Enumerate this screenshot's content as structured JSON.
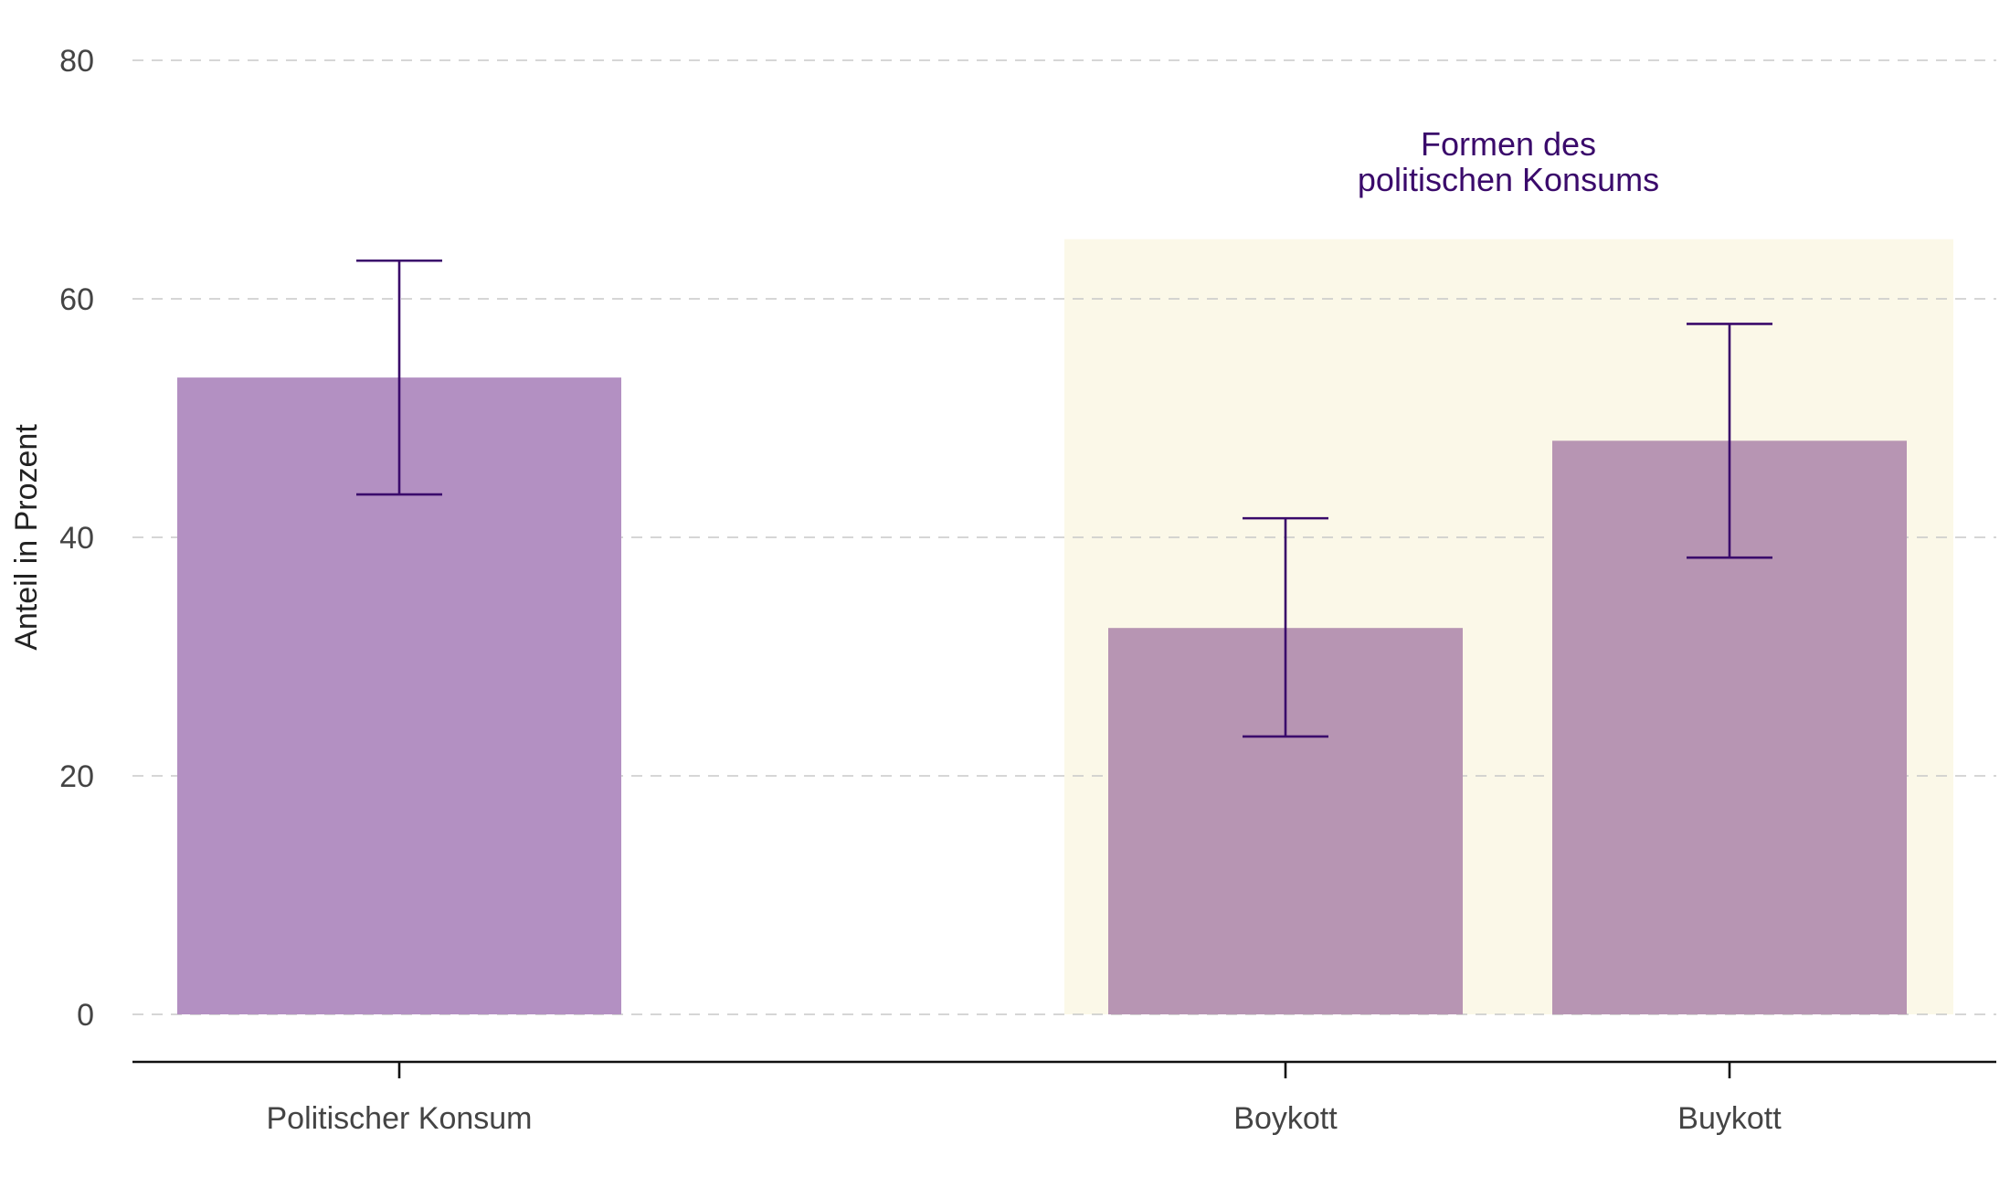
{
  "chart_data": {
    "type": "bar",
    "ylabel": "Anteil in Prozent",
    "xlabel": "",
    "ylim": [
      0,
      80
    ],
    "yticks": [
      0,
      20,
      40,
      60,
      80
    ],
    "grid": "horizontal-dashed",
    "categories": [
      "Politischer Konsum",
      "Boykott",
      "Buykott"
    ],
    "values": [
      53.4,
      32.4,
      48.1
    ],
    "error_low": [
      43.6,
      23.3,
      38.3
    ],
    "error_high": [
      63.2,
      41.6,
      57.9
    ],
    "group_annotation": {
      "lines": [
        "Formen des",
        "politischen Konsums"
      ],
      "categories": [
        "Boykott",
        "Buykott"
      ],
      "ymax": 65
    }
  },
  "colors": {
    "bar_primary": "#b390c2",
    "bar_secondary": "#b795b3",
    "error_bar": "#3a0a6b",
    "highlight_background": "#fbf8e8",
    "grid": "#c8c8c8",
    "axis": "#111111",
    "label_accent": "#3a0a6b"
  }
}
